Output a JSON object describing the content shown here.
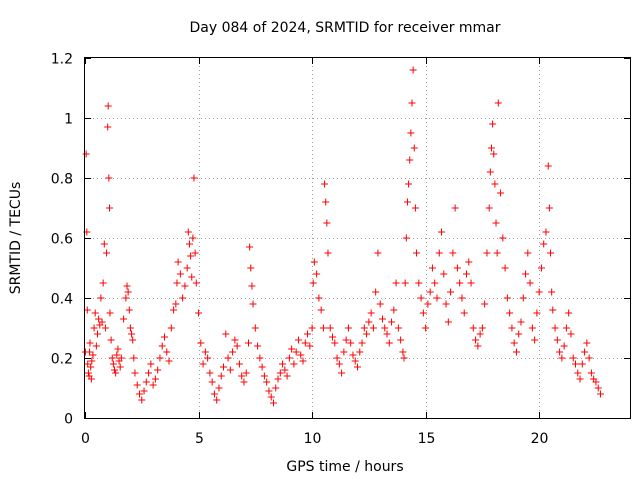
{
  "chart_data": {
    "type": "scatter",
    "title": "Day 084 of 2024, SRMTID for receiver mmar",
    "xlabel": "GPS time / hours",
    "ylabel": "SRMTID / TECUs",
    "xlim": [
      0,
      24
    ],
    "ylim": [
      0,
      1.2
    ],
    "xticks": [
      0,
      5,
      10,
      15,
      20
    ],
    "xtick_labels": [
      "0",
      "5",
      "10",
      "15",
      "20"
    ],
    "yticks": [
      0,
      0.2,
      0.4,
      0.6,
      0.8,
      1.0,
      1.2
    ],
    "ytick_labels": [
      "0",
      "0.2",
      "0.4",
      "0.6",
      "0.8",
      "1",
      "1.2"
    ],
    "grid": true,
    "marker": "+",
    "color": "#ff0000",
    "series": [
      {
        "name": "SRMTID",
        "x": [
          0.02,
          0.05,
          0.08,
          0.1,
          0.12,
          0.15,
          0.18,
          0.2,
          0.22,
          0.25,
          0.28,
          0.3,
          0.35,
          0.4,
          0.45,
          0.5,
          0.55,
          0.6,
          0.65,
          0.7,
          0.75,
          0.8,
          0.85,
          0.9,
          0.95,
          1.0,
          1.02,
          1.05,
          1.08,
          1.1,
          1.15,
          1.2,
          1.25,
          1.3,
          1.35,
          1.4,
          1.45,
          1.5,
          1.55,
          1.6,
          1.7,
          1.8,
          1.85,
          1.9,
          1.95,
          2.0,
          2.05,
          2.1,
          2.15,
          2.2,
          2.3,
          2.4,
          2.5,
          2.6,
          2.7,
          2.8,
          2.9,
          3.0,
          3.1,
          3.2,
          3.3,
          3.4,
          3.5,
          3.6,
          3.7,
          3.8,
          3.9,
          4.0,
          4.05,
          4.1,
          4.2,
          4.3,
          4.4,
          4.5,
          4.55,
          4.6,
          4.65,
          4.7,
          4.75,
          4.8,
          4.85,
          4.9,
          5.0,
          5.1,
          5.2,
          5.3,
          5.4,
          5.5,
          5.6,
          5.7,
          5.8,
          5.9,
          6.0,
          6.1,
          6.2,
          6.3,
          6.4,
          6.5,
          6.6,
          6.7,
          6.8,
          6.9,
          7.0,
          7.1,
          7.2,
          7.25,
          7.3,
          7.35,
          7.4,
          7.5,
          7.6,
          7.7,
          7.8,
          7.9,
          8.0,
          8.1,
          8.2,
          8.3,
          8.4,
          8.5,
          8.6,
          8.7,
          8.8,
          8.9,
          9.0,
          9.1,
          9.2,
          9.3,
          9.4,
          9.5,
          9.6,
          9.7,
          9.8,
          9.9,
          10.0,
          10.05,
          10.1,
          10.2,
          10.3,
          10.4,
          10.5,
          10.55,
          10.6,
          10.65,
          10.7,
          10.8,
          10.9,
          11.0,
          11.1,
          11.2,
          11.3,
          11.4,
          11.5,
          11.6,
          11.7,
          11.8,
          11.9,
          12.0,
          12.1,
          12.2,
          12.3,
          12.4,
          12.5,
          12.6,
          12.7,
          12.8,
          12.9,
          13.0,
          13.1,
          13.2,
          13.3,
          13.4,
          13.5,
          13.6,
          13.7,
          13.8,
          13.9,
          14.0,
          14.05,
          14.1,
          14.15,
          14.2,
          14.25,
          14.3,
          14.35,
          14.4,
          14.45,
          14.5,
          14.55,
          14.6,
          14.7,
          14.8,
          14.9,
          15.0,
          15.1,
          15.2,
          15.3,
          15.4,
          15.5,
          15.6,
          15.7,
          15.8,
          15.9,
          16.0,
          16.1,
          16.2,
          16.3,
          16.4,
          16.5,
          16.6,
          16.7,
          16.8,
          16.9,
          17.0,
          17.1,
          17.2,
          17.3,
          17.4,
          17.5,
          17.6,
          17.7,
          17.8,
          17.85,
          17.9,
          17.95,
          18.0,
          18.05,
          18.1,
          18.15,
          18.2,
          18.3,
          18.4,
          18.5,
          18.6,
          18.7,
          18.8,
          18.9,
          19.0,
          19.1,
          19.2,
          19.3,
          19.4,
          19.5,
          19.6,
          19.7,
          19.8,
          19.9,
          20.0,
          20.1,
          20.2,
          20.3,
          20.4,
          20.45,
          20.5,
          20.55,
          20.6,
          20.7,
          20.8,
          20.9,
          21.0,
          21.1,
          21.2,
          21.3,
          21.4,
          21.5,
          21.6,
          21.7,
          21.8,
          21.9,
          22.0,
          22.1,
          22.2,
          22.3,
          22.4,
          22.5,
          22.6,
          22.7
        ],
        "y": [
          0.22,
          0.88,
          0.62,
          0.36,
          0.18,
          0.15,
          0.14,
          0.22,
          0.25,
          0.17,
          0.13,
          0.19,
          0.21,
          0.3,
          0.35,
          0.24,
          0.28,
          0.33,
          0.31,
          0.4,
          0.32,
          0.45,
          0.58,
          0.3,
          0.55,
          0.97,
          1.04,
          0.8,
          0.7,
          0.35,
          0.26,
          0.2,
          0.18,
          0.16,
          0.15,
          0.21,
          0.23,
          0.19,
          0.17,
          0.2,
          0.33,
          0.4,
          0.44,
          0.42,
          0.36,
          0.3,
          0.28,
          0.26,
          0.2,
          0.15,
          0.11,
          0.08,
          0.06,
          0.09,
          0.12,
          0.15,
          0.18,
          0.11,
          0.13,
          0.16,
          0.2,
          0.24,
          0.27,
          0.22,
          0.19,
          0.3,
          0.36,
          0.38,
          0.45,
          0.52,
          0.48,
          0.4,
          0.44,
          0.5,
          0.62,
          0.58,
          0.54,
          0.47,
          0.6,
          0.8,
          0.55,
          0.45,
          0.35,
          0.25,
          0.18,
          0.22,
          0.2,
          0.15,
          0.12,
          0.08,
          0.06,
          0.1,
          0.14,
          0.17,
          0.28,
          0.2,
          0.16,
          0.22,
          0.26,
          0.24,
          0.18,
          0.14,
          0.12,
          0.15,
          0.25,
          0.57,
          0.5,
          0.44,
          0.38,
          0.3,
          0.24,
          0.2,
          0.17,
          0.14,
          0.12,
          0.09,
          0.07,
          0.05,
          0.1,
          0.13,
          0.15,
          0.18,
          0.16,
          0.14,
          0.2,
          0.23,
          0.18,
          0.22,
          0.26,
          0.21,
          0.19,
          0.25,
          0.28,
          0.24,
          0.3,
          0.45,
          0.52,
          0.48,
          0.4,
          0.36,
          0.3,
          0.78,
          0.72,
          0.65,
          0.55,
          0.3,
          0.27,
          0.25,
          0.2,
          0.18,
          0.15,
          0.22,
          0.26,
          0.3,
          0.25,
          0.21,
          0.19,
          0.17,
          0.22,
          0.25,
          0.3,
          0.28,
          0.32,
          0.35,
          0.3,
          0.42,
          0.55,
          0.38,
          0.33,
          0.3,
          0.28,
          0.25,
          0.32,
          0.36,
          0.45,
          0.3,
          0.26,
          0.22,
          0.2,
          0.45,
          0.6,
          0.72,
          0.78,
          0.86,
          0.95,
          1.05,
          1.16,
          0.9,
          0.7,
          0.55,
          0.45,
          0.4,
          0.35,
          0.3,
          0.38,
          0.42,
          0.5,
          0.45,
          0.4,
          0.55,
          0.62,
          0.48,
          0.38,
          0.32,
          0.42,
          0.55,
          0.7,
          0.5,
          0.45,
          0.4,
          0.35,
          0.48,
          0.52,
          0.45,
          0.3,
          0.26,
          0.24,
          0.28,
          0.3,
          0.38,
          0.55,
          0.7,
          0.82,
          0.9,
          0.98,
          0.88,
          0.78,
          0.65,
          0.55,
          1.05,
          0.75,
          0.6,
          0.5,
          0.4,
          0.35,
          0.3,
          0.25,
          0.22,
          0.28,
          0.32,
          0.4,
          0.48,
          0.55,
          0.45,
          0.3,
          0.26,
          0.35,
          0.42,
          0.5,
          0.58,
          0.62,
          0.84,
          0.7,
          0.55,
          0.42,
          0.36,
          0.3,
          0.26,
          0.22,
          0.2,
          0.24,
          0.3,
          0.35,
          0.28,
          0.2,
          0.18,
          0.15,
          0.13,
          0.18,
          0.22,
          0.25,
          0.2,
          0.15,
          0.13,
          0.12,
          0.1,
          0.08
        ]
      }
    ]
  }
}
